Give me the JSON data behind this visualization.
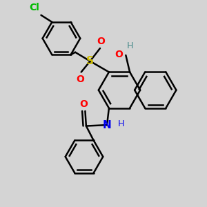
{
  "bg_color": "#d4d4d4",
  "bond_color": "#000000",
  "bond_width": 1.8,
  "cl_color": "#00bb00",
  "s_color": "#ccbb00",
  "o_color": "#ff0000",
  "n_color": "#0000ee",
  "ho_color": "#448888",
  "figsize": [
    3.0,
    3.0
  ],
  "dpi": 100,
  "xlim": [
    0,
    10
  ],
  "ylim": [
    0,
    10
  ]
}
